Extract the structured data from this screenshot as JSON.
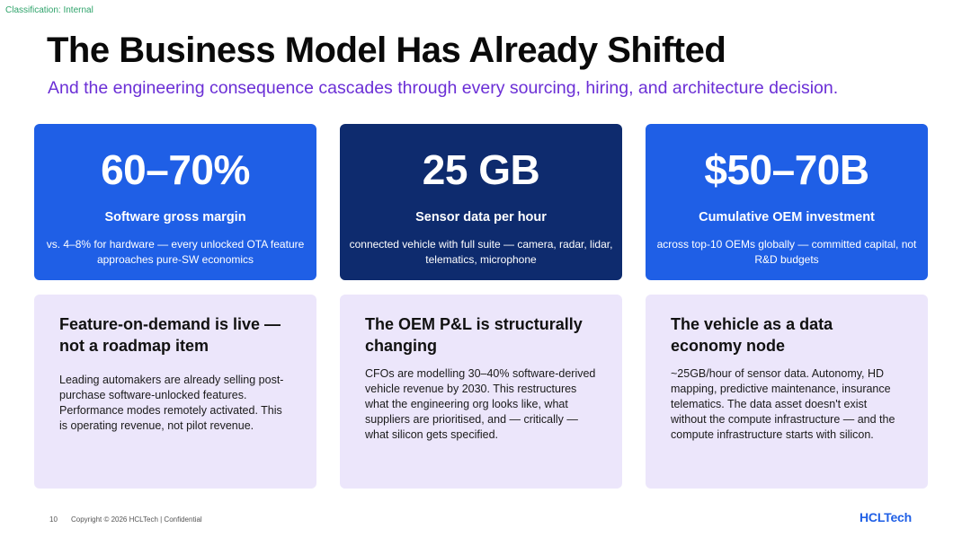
{
  "classification": "Classification: Internal",
  "title": "The Business Model Has Already Shifted",
  "subtitle": "And the engineering consequence cascades through every sourcing, hiring, and architecture decision.",
  "stats": [
    {
      "value": "60–70%",
      "label": "Software gross margin",
      "desc": "vs. 4–8% for hardware — every unlocked OTA feature approaches pure-SW economics",
      "color": "#1f5fe6"
    },
    {
      "value": "25 GB",
      "label": "Sensor data per hour",
      "desc": "connected vehicle with full suite — camera, radar, lidar, telematics, microphone",
      "color": "#0e2b6e"
    },
    {
      "value": "$50–70B",
      "label": "Cumulative OEM investment",
      "desc": "across top-10 OEMs globally — committed capital, not R&D budgets",
      "color": "#1f5fe6"
    }
  ],
  "cards": [
    {
      "heading": "Feature-on-demand is live — not a roadmap item",
      "body": "Leading automakers are already selling post-purchase software-unlocked features. Performance modes remotely activated. This is operating revenue, not pilot revenue."
    },
    {
      "heading": "The OEM P&L is structurally changing",
      "body": "CFOs are modelling 30–40% software-derived vehicle revenue by 2030. This restructures what the engineering org looks like, what suppliers are prioritised, and — critically — what silicon gets specified."
    },
    {
      "heading": "The vehicle as a data economy node",
      "body": "~25GB/hour of sensor data. Autonomy, HD mapping, predictive maintenance, insurance telematics. The data asset doesn't exist without the compute infrastructure — and the compute infrastructure starts with silicon."
    }
  ],
  "footer": {
    "page_number": "10",
    "copyright": "Copyright © 2026 HCLTech | Confidential",
    "logo": "HCLTech"
  },
  "colors": {
    "accent_blue": "#1f5fe6",
    "dark_navy": "#0e2b6e",
    "subtitle_purple": "#6b2fd6",
    "card_lavender": "#ece6fb",
    "classification_green": "#2fa36b"
  }
}
